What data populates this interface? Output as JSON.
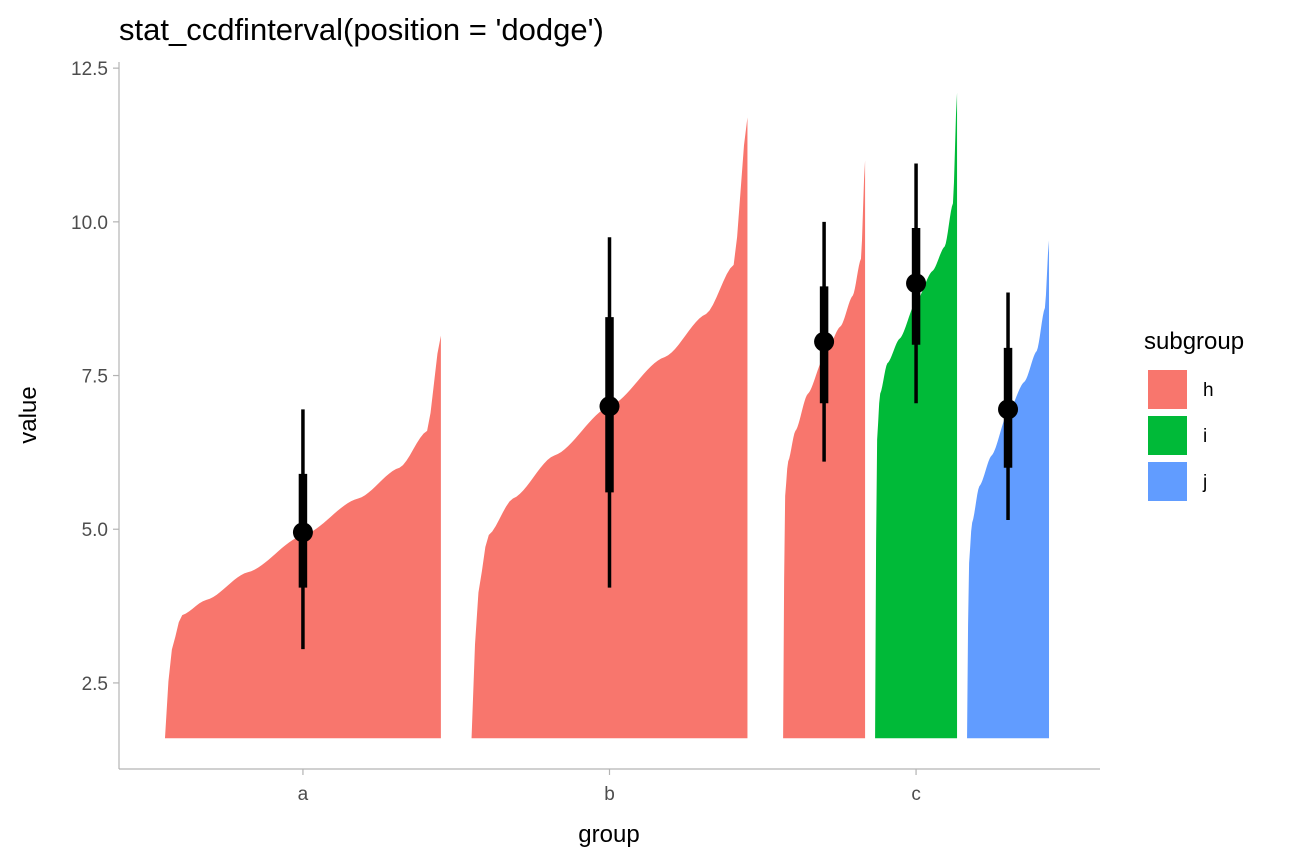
{
  "chart_data": {
    "type": "area",
    "title": "stat_ccdfinterval(position = 'dodge')",
    "xlabel": "group",
    "ylabel": "value",
    "categories": [
      "a",
      "b",
      "c"
    ],
    "ylim": [
      1.1,
      12.6
    ],
    "y_ticks": [
      2.5,
      5.0,
      7.5,
      10.0,
      12.5
    ],
    "y_tick_labels": [
      "2.5",
      "5.0",
      "7.5",
      "10.0",
      "12.5"
    ],
    "grid": false,
    "legend": {
      "title": "subgroup",
      "placement": "right",
      "items": [
        {
          "label": "h",
          "color": "#F8766D"
        },
        {
          "label": "i",
          "color": "#00BA38"
        },
        {
          "label": "j",
          "color": "#619CFF"
        }
      ]
    },
    "baseline": 1.6,
    "series": [
      {
        "group": "a",
        "subgroup": "h",
        "color": "#F8766D",
        "dodge_slot": 0,
        "dodge_count": 1,
        "median": 4.95,
        "interval_66": [
          4.05,
          5.9
        ],
        "interval_95": [
          3.05,
          6.95
        ],
        "ccdf_profile": [
          [
            0.0,
            1.6
          ],
          [
            0.02,
            3.0
          ],
          [
            0.06,
            3.6
          ],
          [
            0.15,
            3.85
          ],
          [
            0.3,
            4.3
          ],
          [
            0.5,
            4.9
          ],
          [
            0.7,
            5.5
          ],
          [
            0.85,
            6.0
          ],
          [
            0.95,
            6.6
          ],
          [
            1.0,
            8.15
          ]
        ]
      },
      {
        "group": "b",
        "subgroup": "h",
        "color": "#F8766D",
        "dodge_slot": 0,
        "dodge_count": 1,
        "median": 7.0,
        "interval_66": [
          5.6,
          8.45
        ],
        "interval_95": [
          4.05,
          9.75
        ],
        "ccdf_profile": [
          [
            0.0,
            1.6
          ],
          [
            0.02,
            3.9
          ],
          [
            0.06,
            4.9
          ],
          [
            0.15,
            5.5
          ],
          [
            0.3,
            6.2
          ],
          [
            0.5,
            7.0
          ],
          [
            0.7,
            7.8
          ],
          [
            0.85,
            8.5
          ],
          [
            0.95,
            9.3
          ],
          [
            1.0,
            11.7
          ]
        ]
      },
      {
        "group": "c",
        "subgroup": "h",
        "color": "#F8766D",
        "dodge_slot": 0,
        "dodge_count": 3,
        "median": 8.05,
        "interval_66": [
          7.05,
          8.95
        ],
        "interval_95": [
          6.1,
          10.0
        ],
        "ccdf_profile": [
          [
            0.0,
            1.6
          ],
          [
            0.02,
            5.5
          ],
          [
            0.06,
            6.1
          ],
          [
            0.15,
            6.6
          ],
          [
            0.3,
            7.2
          ],
          [
            0.5,
            7.8
          ],
          [
            0.7,
            8.3
          ],
          [
            0.85,
            8.8
          ],
          [
            0.95,
            9.4
          ],
          [
            1.0,
            11.0
          ]
        ]
      },
      {
        "group": "c",
        "subgroup": "i",
        "color": "#00BA38",
        "dodge_slot": 1,
        "dodge_count": 3,
        "median": 9.0,
        "interval_66": [
          8.0,
          9.9
        ],
        "interval_95": [
          7.05,
          10.95
        ],
        "ccdf_profile": [
          [
            0.0,
            1.6
          ],
          [
            0.02,
            6.4
          ],
          [
            0.06,
            7.2
          ],
          [
            0.15,
            7.7
          ],
          [
            0.3,
            8.1
          ],
          [
            0.5,
            8.7
          ],
          [
            0.7,
            9.2
          ],
          [
            0.85,
            9.6
          ],
          [
            0.95,
            10.3
          ],
          [
            1.0,
            12.1
          ]
        ]
      },
      {
        "group": "c",
        "subgroup": "j",
        "color": "#619CFF",
        "dodge_slot": 2,
        "dodge_count": 3,
        "median": 6.95,
        "interval_66": [
          6.0,
          7.95
        ],
        "interval_95": [
          5.15,
          8.85
        ],
        "ccdf_profile": [
          [
            0.0,
            1.6
          ],
          [
            0.02,
            4.4
          ],
          [
            0.06,
            5.1
          ],
          [
            0.15,
            5.7
          ],
          [
            0.3,
            6.2
          ],
          [
            0.5,
            6.9
          ],
          [
            0.7,
            7.4
          ],
          [
            0.85,
            7.9
          ],
          [
            0.95,
            8.6
          ],
          [
            1.0,
            9.7
          ]
        ]
      }
    ]
  }
}
